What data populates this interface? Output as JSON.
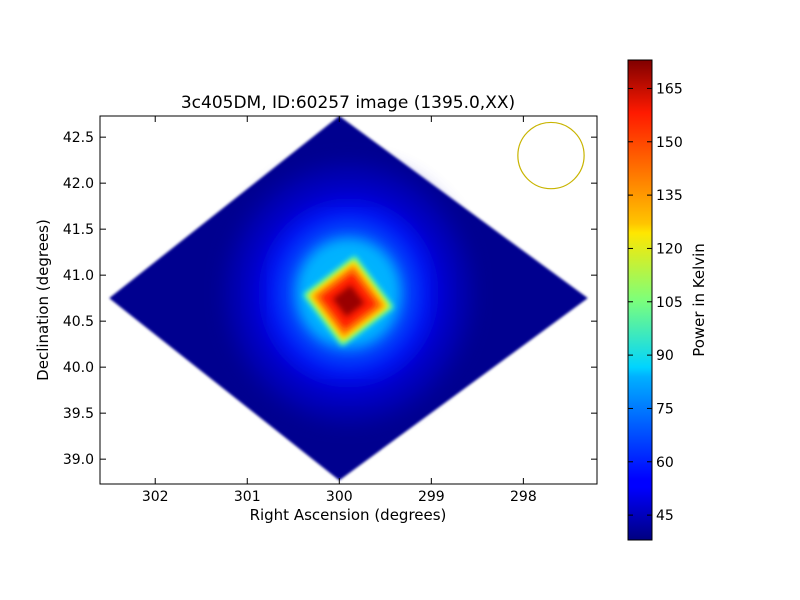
{
  "chart_data": {
    "type": "heatmap",
    "title": "3c405DM, ID:60257 image (1395.0,XX)",
    "xlabel": "Right Ascension (degrees)",
    "ylabel": "Declination (degrees)",
    "x_inverted": true,
    "xlim": [
      302.6,
      297.2
    ],
    "ylim": [
      38.73,
      42.73
    ],
    "x_ticks": [
      302,
      301,
      300,
      299,
      298
    ],
    "x_tick_labels": [
      "302",
      "301",
      "300",
      "299",
      "298"
    ],
    "y_ticks": [
      39.0,
      39.5,
      40.0,
      40.5,
      41.0,
      41.5,
      42.0,
      42.5
    ],
    "y_tick_labels": [
      "39.0",
      "39.5",
      "40.0",
      "40.5",
      "41.0",
      "41.5",
      "42.0",
      "42.5"
    ],
    "coverage_region": {
      "shape": "diamond",
      "vertices_radec": [
        [
          300.0,
          42.73
        ],
        [
          297.3,
          40.75
        ],
        [
          300.0,
          38.77
        ],
        [
          302.5,
          40.75
        ]
      ]
    },
    "hotspot": {
      "center_radec": [
        299.9,
        40.72
      ],
      "peak_kelvin": 172,
      "background_kelvin": 42
    },
    "beam_circle": {
      "center_radec": [
        297.7,
        42.3
      ],
      "radius_deg": 0.36,
      "color": "#c8b400"
    },
    "colorbar": {
      "label": "Power in Kelvin",
      "min": 38,
      "max": 173,
      "ticks": [
        45,
        60,
        75,
        90,
        105,
        120,
        135,
        150,
        165
      ],
      "tick_labels": [
        "45",
        "60",
        "75",
        "90",
        "105",
        "120",
        "135",
        "150",
        "165"
      ],
      "colormap": "jet"
    }
  }
}
